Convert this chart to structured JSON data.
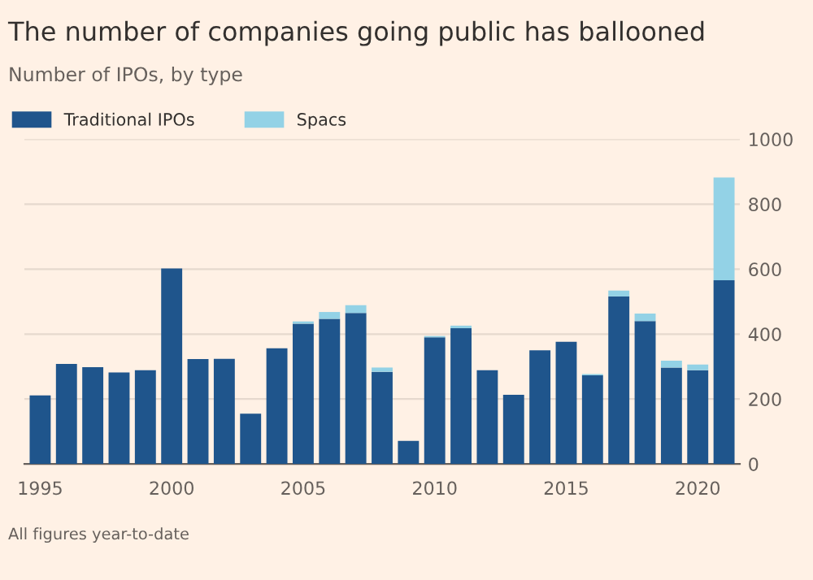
{
  "chart_data": {
    "type": "bar",
    "stacked": true,
    "title": "The number of companies going public has ballooned",
    "subtitle": "Number of IPOs, by type",
    "categories": [
      "1995",
      null,
      null,
      null,
      null,
      "2000",
      null,
      null,
      null,
      null,
      "2005",
      null,
      null,
      null,
      null,
      "2010",
      null,
      null,
      null,
      null,
      "2015",
      null,
      null,
      null,
      null,
      "2020",
      null
    ],
    "series": [
      {
        "name": "Traditional IPOs",
        "color": "#1f558c",
        "values": [
          211,
          308,
          298,
          282,
          289,
          602,
          323,
          324,
          155,
          356,
          432,
          447,
          465,
          284,
          71,
          390,
          418,
          289,
          213,
          350,
          376,
          273,
          516,
          440,
          297,
          289,
          566
        ]
      },
      {
        "name": "Spacs",
        "color": "#93d2e6",
        "values": [
          0,
          0,
          0,
          0,
          0,
          0,
          0,
          0,
          0,
          0,
          7,
          21,
          24,
          13,
          0,
          4,
          8,
          0,
          0,
          0,
          0,
          4,
          18,
          23,
          21,
          17,
          316
        ]
      }
    ],
    "ylim": [
      0,
      1000
    ],
    "yticks": [
      0,
      200,
      400,
      600,
      800,
      1000
    ],
    "grid": "y",
    "legend": "top left",
    "annotations": [
      "All figures year-to-date"
    ]
  }
}
